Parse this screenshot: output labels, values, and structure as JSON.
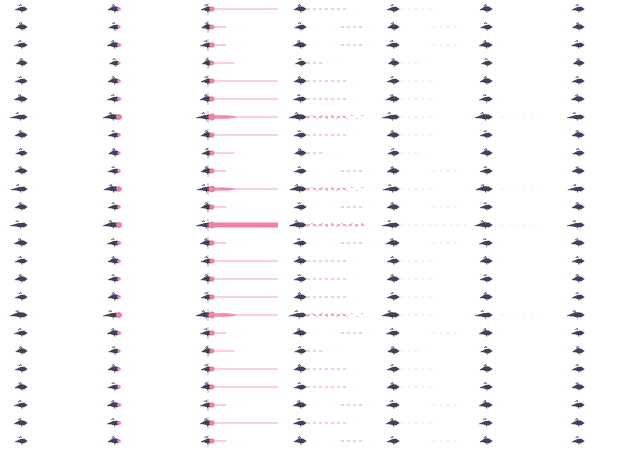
{
  "colors": {
    "glyph": "#2a2f4a",
    "accent": "#f27fa6",
    "background": "#ffffff"
  },
  "columns": [
    {
      "kind": "glyph-only"
    },
    {
      "kind": "glyph-dot"
    },
    {
      "kind": "glyph-dot-line"
    },
    {
      "kind": "glyph-dashes"
    },
    {
      "kind": "glyph-dots"
    },
    {
      "kind": "glyph-dots-faint"
    },
    {
      "kind": "glyph-only"
    }
  ],
  "rows": [
    {
      "weight": 0.3,
      "variant": "long"
    },
    {
      "weight": 0.2,
      "variant": "right"
    },
    {
      "weight": 0.4,
      "variant": "right"
    },
    {
      "weight": 0.1,
      "variant": "short"
    },
    {
      "weight": 0.3,
      "variant": "long"
    },
    {
      "weight": 0.4,
      "variant": "long"
    },
    {
      "weight": 1.0,
      "variant": "long"
    },
    {
      "weight": 0.3,
      "variant": "long"
    },
    {
      "weight": 0.2,
      "variant": "short"
    },
    {
      "weight": 0.3,
      "variant": "right"
    },
    {
      "weight": 0.9,
      "variant": "long"
    },
    {
      "weight": 0.3,
      "variant": "right"
    },
    {
      "weight": 1.0,
      "variant": "full"
    },
    {
      "weight": 0.4,
      "variant": "right"
    },
    {
      "weight": 0.3,
      "variant": "long"
    },
    {
      "weight": 0.3,
      "variant": "long"
    },
    {
      "weight": 0.3,
      "variant": "long"
    },
    {
      "weight": 1.0,
      "variant": "long"
    },
    {
      "weight": 0.4,
      "variant": "right"
    },
    {
      "weight": 0.2,
      "variant": "short"
    },
    {
      "weight": 0.3,
      "variant": "long"
    },
    {
      "weight": 0.3,
      "variant": "long"
    },
    {
      "weight": 0.4,
      "variant": "right"
    },
    {
      "weight": 0.4,
      "variant": "long"
    },
    {
      "weight": 0.3,
      "variant": "right"
    }
  ]
}
